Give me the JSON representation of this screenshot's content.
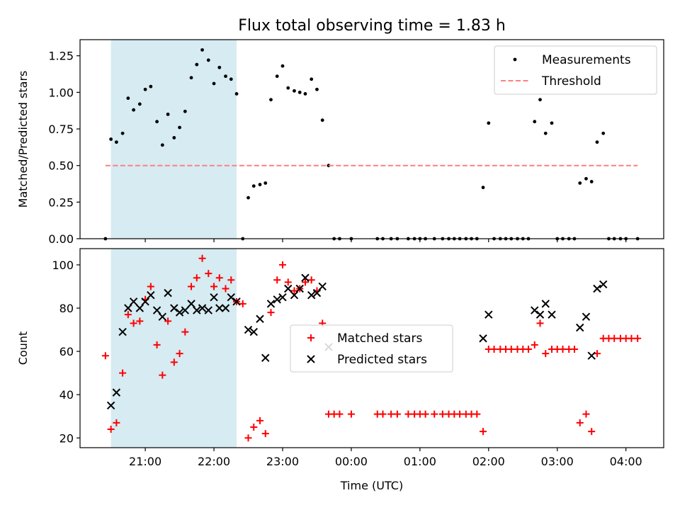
{
  "figure": {
    "title": "Flux total observing time = 1.83 h"
  },
  "chart_data": [
    {
      "type": "scatter",
      "panel": "top",
      "title": "Flux total observing time = 1.83 h",
      "xlabel": "",
      "ylabel": "Matched/Predicted stars",
      "x_unit": "UTC hour (24 = 00:00)",
      "xlim": [
        20.05,
        28.55
      ],
      "ylim": [
        0.0,
        1.36
      ],
      "yticks": [
        0.0,
        0.25,
        0.5,
        0.75,
        1.0,
        1.25
      ],
      "ytick_labels": [
        "0.00",
        "0.25",
        "0.50",
        "0.75",
        "1.00",
        "1.25"
      ],
      "grid": false,
      "legend_position": "top-right",
      "shaded_span": {
        "x0": 20.5,
        "x1": 22.33,
        "color": "#add8e6"
      },
      "series": [
        {
          "name": "Measurements",
          "marker": "dot",
          "color": "#000000",
          "points": [
            [
              20.42,
              0.0
            ],
            [
              20.5,
              0.68
            ],
            [
              20.58,
              0.66
            ],
            [
              20.67,
              0.72
            ],
            [
              20.75,
              0.96
            ],
            [
              20.83,
              0.88
            ],
            [
              20.92,
              0.92
            ],
            [
              21.0,
              1.02
            ],
            [
              21.08,
              1.04
            ],
            [
              21.17,
              0.8
            ],
            [
              21.25,
              0.64
            ],
            [
              21.33,
              0.85
            ],
            [
              21.42,
              0.69
            ],
            [
              21.5,
              0.76
            ],
            [
              21.58,
              0.87
            ],
            [
              21.67,
              1.1
            ],
            [
              21.75,
              1.19
            ],
            [
              21.83,
              1.29
            ],
            [
              21.92,
              1.22
            ],
            [
              22.0,
              1.06
            ],
            [
              22.08,
              1.17
            ],
            [
              22.17,
              1.11
            ],
            [
              22.25,
              1.09
            ],
            [
              22.33,
              0.99
            ],
            [
              22.42,
              0.0
            ],
            [
              22.5,
              0.28
            ],
            [
              22.58,
              0.36
            ],
            [
              22.67,
              0.37
            ],
            [
              22.75,
              0.38
            ],
            [
              22.83,
              0.95
            ],
            [
              22.92,
              1.11
            ],
            [
              23.0,
              1.18
            ],
            [
              23.08,
              1.03
            ],
            [
              23.17,
              1.01
            ],
            [
              23.25,
              1.0
            ],
            [
              23.33,
              0.99
            ],
            [
              23.42,
              1.09
            ],
            [
              23.5,
              1.02
            ],
            [
              23.58,
              0.81
            ],
            [
              23.67,
              0.5
            ],
            [
              23.75,
              0.0
            ],
            [
              23.83,
              0.0
            ],
            [
              24.0,
              0.0
            ],
            [
              24.38,
              0.0
            ],
            [
              24.46,
              0.0
            ],
            [
              24.58,
              0.0
            ],
            [
              24.67,
              0.0
            ],
            [
              24.83,
              0.0
            ],
            [
              24.92,
              0.0
            ],
            [
              25.0,
              0.0
            ],
            [
              25.08,
              0.0
            ],
            [
              25.21,
              0.0
            ],
            [
              25.33,
              0.0
            ],
            [
              25.42,
              0.0
            ],
            [
              25.5,
              0.0
            ],
            [
              25.58,
              0.0
            ],
            [
              25.67,
              0.0
            ],
            [
              25.75,
              0.0
            ],
            [
              25.83,
              0.0
            ],
            [
              25.92,
              0.35
            ],
            [
              26.0,
              0.79
            ],
            [
              26.08,
              0.0
            ],
            [
              26.17,
              0.0
            ],
            [
              26.25,
              0.0
            ],
            [
              26.33,
              0.0
            ],
            [
              26.42,
              0.0
            ],
            [
              26.5,
              0.0
            ],
            [
              26.58,
              0.0
            ],
            [
              26.67,
              0.8
            ],
            [
              26.75,
              0.95
            ],
            [
              26.83,
              0.72
            ],
            [
              26.92,
              0.79
            ],
            [
              27.0,
              0.0
            ],
            [
              27.08,
              0.0
            ],
            [
              27.17,
              0.0
            ],
            [
              27.25,
              0.0
            ],
            [
              27.33,
              0.38
            ],
            [
              27.42,
              0.41
            ],
            [
              27.5,
              0.39
            ],
            [
              27.58,
              0.66
            ],
            [
              27.67,
              0.72
            ],
            [
              27.75,
              0.0
            ],
            [
              27.83,
              0.0
            ],
            [
              27.92,
              0.0
            ],
            [
              28.0,
              0.0
            ],
            [
              28.17,
              0.0
            ]
          ]
        },
        {
          "name": "Threshold",
          "marker": "dashed-line",
          "color": "#ff7f7f",
          "points": [
            [
              20.42,
              0.5
            ],
            [
              28.17,
              0.5
            ]
          ]
        }
      ]
    },
    {
      "type": "scatter",
      "panel": "bottom",
      "title": "",
      "xlabel": "Time (UTC)",
      "ylabel": "Count",
      "x_unit": "UTC hour (24 = 00:00)",
      "xlim": [
        20.05,
        28.55
      ],
      "ylim": [
        15.5,
        107.5
      ],
      "yticks": [
        20,
        40,
        60,
        80,
        100
      ],
      "ytick_labels": [
        "20",
        "40",
        "60",
        "80",
        "100"
      ],
      "xticks": [
        21,
        22,
        23,
        24,
        25,
        26,
        27,
        28
      ],
      "xtick_labels": [
        "21:00",
        "22:00",
        "23:00",
        "00:00",
        "01:00",
        "02:00",
        "03:00",
        "04:00"
      ],
      "grid": false,
      "legend_position": "center",
      "shaded_span": {
        "x0": 20.5,
        "x1": 22.33,
        "color": "#add8e6"
      },
      "series": [
        {
          "name": "Matched stars",
          "marker": "plus",
          "color": "#ff0000",
          "points": [
            [
              20.42,
              58
            ],
            [
              20.5,
              24
            ],
            [
              20.58,
              27
            ],
            [
              20.67,
              50
            ],
            [
              20.75,
              77
            ],
            [
              20.83,
              73
            ],
            [
              20.92,
              74
            ],
            [
              21.0,
              84
            ],
            [
              21.08,
              90
            ],
            [
              21.17,
              63
            ],
            [
              21.25,
              49
            ],
            [
              21.33,
              74
            ],
            [
              21.42,
              55
            ],
            [
              21.5,
              59
            ],
            [
              21.58,
              69
            ],
            [
              21.67,
              90
            ],
            [
              21.75,
              94
            ],
            [
              21.83,
              103
            ],
            [
              21.92,
              96
            ],
            [
              22.0,
              90
            ],
            [
              22.08,
              94
            ],
            [
              22.17,
              89
            ],
            [
              22.25,
              93
            ],
            [
              22.33,
              83
            ],
            [
              22.42,
              82
            ],
            [
              22.5,
              20
            ],
            [
              22.58,
              25
            ],
            [
              22.67,
              28
            ],
            [
              22.75,
              22
            ],
            [
              22.83,
              78
            ],
            [
              22.92,
              93
            ],
            [
              23.0,
              100
            ],
            [
              23.08,
              92
            ],
            [
              23.17,
              88
            ],
            [
              23.25,
              89
            ],
            [
              23.33,
              92
            ],
            [
              23.42,
              93
            ],
            [
              23.5,
              88
            ],
            [
              23.58,
              73
            ],
            [
              23.67,
              31
            ],
            [
              23.75,
              31
            ],
            [
              23.83,
              31
            ],
            [
              24.0,
              31
            ],
            [
              24.38,
              31
            ],
            [
              24.46,
              31
            ],
            [
              24.58,
              31
            ],
            [
              24.67,
              31
            ],
            [
              24.83,
              31
            ],
            [
              24.92,
              31
            ],
            [
              25.0,
              31
            ],
            [
              25.08,
              31
            ],
            [
              25.21,
              31
            ],
            [
              25.33,
              31
            ],
            [
              25.42,
              31
            ],
            [
              25.5,
              31
            ],
            [
              25.58,
              31
            ],
            [
              25.67,
              31
            ],
            [
              25.75,
              31
            ],
            [
              25.83,
              31
            ],
            [
              25.92,
              23
            ],
            [
              26.0,
              61
            ],
            [
              26.08,
              61
            ],
            [
              26.17,
              61
            ],
            [
              26.25,
              61
            ],
            [
              26.33,
              61
            ],
            [
              26.42,
              61
            ],
            [
              26.5,
              61
            ],
            [
              26.58,
              61
            ],
            [
              26.67,
              63
            ],
            [
              26.75,
              73
            ],
            [
              26.83,
              59
            ],
            [
              26.92,
              61
            ],
            [
              27.0,
              61
            ],
            [
              27.08,
              61
            ],
            [
              27.17,
              61
            ],
            [
              27.25,
              61
            ],
            [
              27.33,
              27
            ],
            [
              27.42,
              31
            ],
            [
              27.5,
              23
            ],
            [
              27.58,
              59
            ],
            [
              27.67,
              66
            ],
            [
              27.75,
              66
            ],
            [
              27.83,
              66
            ],
            [
              27.92,
              66
            ],
            [
              28.0,
              66
            ],
            [
              28.08,
              66
            ],
            [
              28.17,
              66
            ]
          ]
        },
        {
          "name": "Predicted stars",
          "marker": "x",
          "color": "#000000",
          "points": [
            [
              20.5,
              35
            ],
            [
              20.58,
              41
            ],
            [
              20.67,
              69
            ],
            [
              20.75,
              80
            ],
            [
              20.83,
              83
            ],
            [
              20.92,
              80
            ],
            [
              21.0,
              83
            ],
            [
              21.08,
              86
            ],
            [
              21.17,
              79
            ],
            [
              21.25,
              76
            ],
            [
              21.33,
              87
            ],
            [
              21.42,
              80
            ],
            [
              21.5,
              78
            ],
            [
              21.58,
              79
            ],
            [
              21.67,
              82
            ],
            [
              21.75,
              79
            ],
            [
              21.83,
              80
            ],
            [
              21.92,
              79
            ],
            [
              22.0,
              85
            ],
            [
              22.08,
              80
            ],
            [
              22.17,
              80
            ],
            [
              22.25,
              85
            ],
            [
              22.33,
              83
            ],
            [
              22.5,
              70
            ],
            [
              22.58,
              69
            ],
            [
              22.67,
              75
            ],
            [
              22.75,
              57
            ],
            [
              22.83,
              82
            ],
            [
              22.92,
              84
            ],
            [
              23.0,
              85
            ],
            [
              23.08,
              89
            ],
            [
              23.17,
              86
            ],
            [
              23.25,
              89
            ],
            [
              23.33,
              94
            ],
            [
              23.42,
              86
            ],
            [
              23.5,
              87
            ],
            [
              23.58,
              90
            ],
            [
              23.67,
              62
            ],
            [
              25.92,
              66
            ],
            [
              26.0,
              77
            ],
            [
              26.67,
              79
            ],
            [
              26.75,
              77
            ],
            [
              26.83,
              82
            ],
            [
              26.92,
              77
            ],
            [
              27.33,
              71
            ],
            [
              27.42,
              76
            ],
            [
              27.5,
              58
            ],
            [
              27.58,
              89
            ],
            [
              27.67,
              91
            ]
          ]
        }
      ]
    }
  ]
}
